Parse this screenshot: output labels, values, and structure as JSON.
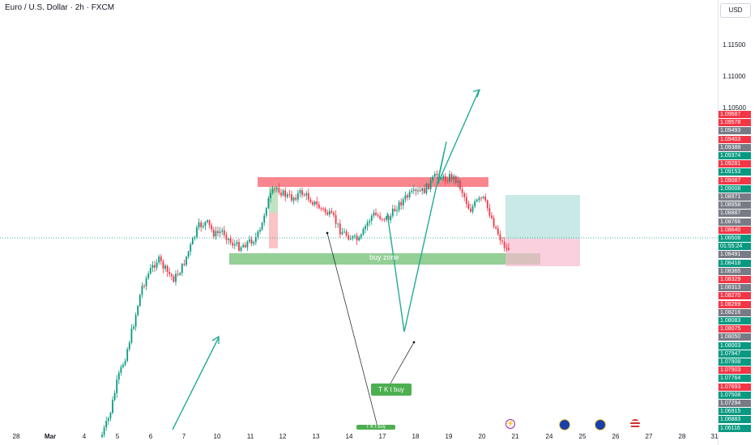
{
  "header": {
    "symbol_title": "Euro / U.S. Dollar · 2h · FXCM",
    "currency_button": "USD"
  },
  "price_scale": {
    "ticks": [
      "1.11500",
      "1.11000",
      "1.10500"
    ],
    "tags": [
      {
        "text": "1.09687",
        "color": "red"
      },
      {
        "text": "1.09578",
        "color": "red"
      },
      {
        "text": "1.09493",
        "color": "gray"
      },
      {
        "text": "1.09403",
        "color": "red"
      },
      {
        "text": "1.09388",
        "color": "gray"
      },
      {
        "text": "1.09374",
        "color": "green"
      },
      {
        "text": "1.09281",
        "color": "red"
      },
      {
        "text": "1.09153",
        "color": "green"
      },
      {
        "text": "1.09087",
        "color": "red"
      },
      {
        "text": "1.09008",
        "color": "green"
      },
      {
        "text": "1.08971",
        "color": "gray"
      },
      {
        "text": "1.08958",
        "color": "gray"
      },
      {
        "text": "1.08887",
        "color": "gray"
      },
      {
        "text": "1.08766",
        "color": "gray"
      },
      {
        "text": "1.08640",
        "color": "red"
      },
      {
        "text": "1.08508",
        "color": "green"
      },
      {
        "text": "01:55:24",
        "color": "green"
      },
      {
        "text": "1.08491",
        "color": "gray"
      },
      {
        "text": "1.08418",
        "color": "green"
      },
      {
        "text": "1.08365",
        "color": "gray"
      },
      {
        "text": "1.08329",
        "color": "red"
      },
      {
        "text": "1.08313",
        "color": "gray"
      },
      {
        "text": "1.08270",
        "color": "red"
      },
      {
        "text": "1.08269",
        "color": "red"
      },
      {
        "text": "1.08216",
        "color": "gray"
      },
      {
        "text": "1.08083",
        "color": "green"
      },
      {
        "text": "1.08075",
        "color": "red"
      },
      {
        "text": "1.08050",
        "color": "gray"
      },
      {
        "text": "1.08003",
        "color": "green"
      },
      {
        "text": "1.07947",
        "color": "green"
      },
      {
        "text": "1.07908",
        "color": "green"
      },
      {
        "text": "1.07903",
        "color": "red"
      },
      {
        "text": "1.07764",
        "color": "green"
      },
      {
        "text": "1.07693",
        "color": "red"
      },
      {
        "text": "1.07508",
        "color": "green"
      },
      {
        "text": "1.07294",
        "color": "gray"
      },
      {
        "text": "1.06915",
        "color": "green"
      },
      {
        "text": "1.06883",
        "color": "green"
      },
      {
        "text": "1.06116",
        "color": "green"
      }
    ]
  },
  "time_axis": [
    {
      "label": "28",
      "bold": false
    },
    {
      "label": "Mar",
      "bold": true
    },
    {
      "label": "4",
      "bold": false
    },
    {
      "label": "5",
      "bold": false
    },
    {
      "label": "6",
      "bold": false
    },
    {
      "label": "7",
      "bold": false
    },
    {
      "label": "10",
      "bold": false
    },
    {
      "label": "11",
      "bold": false
    },
    {
      "label": "12",
      "bold": false
    },
    {
      "label": "13",
      "bold": false
    },
    {
      "label": "14",
      "bold": false
    },
    {
      "label": "17",
      "bold": false
    },
    {
      "label": "18",
      "bold": false
    },
    {
      "label": "19",
      "bold": false
    },
    {
      "label": "20",
      "bold": false
    },
    {
      "label": "21",
      "bold": false
    },
    {
      "label": "24",
      "bold": false
    },
    {
      "label": "25",
      "bold": false
    },
    {
      "label": "26",
      "bold": false
    },
    {
      "label": "27",
      "bold": false
    },
    {
      "label": "28",
      "bold": false
    },
    {
      "label": "31",
      "bold": false
    }
  ],
  "annotations": {
    "buy_zone_label": "buy zone",
    "callout_1": "T K t buy",
    "callout_2": "T K t buy"
  },
  "colors": {
    "up": "#089981",
    "down": "#f23645",
    "arrow": "#22ab94",
    "resistance": "#f7525f",
    "buy_zone": "#4caf50",
    "target_zone": "#b2dfdb",
    "stop_zone": "#f8bbd0"
  }
}
